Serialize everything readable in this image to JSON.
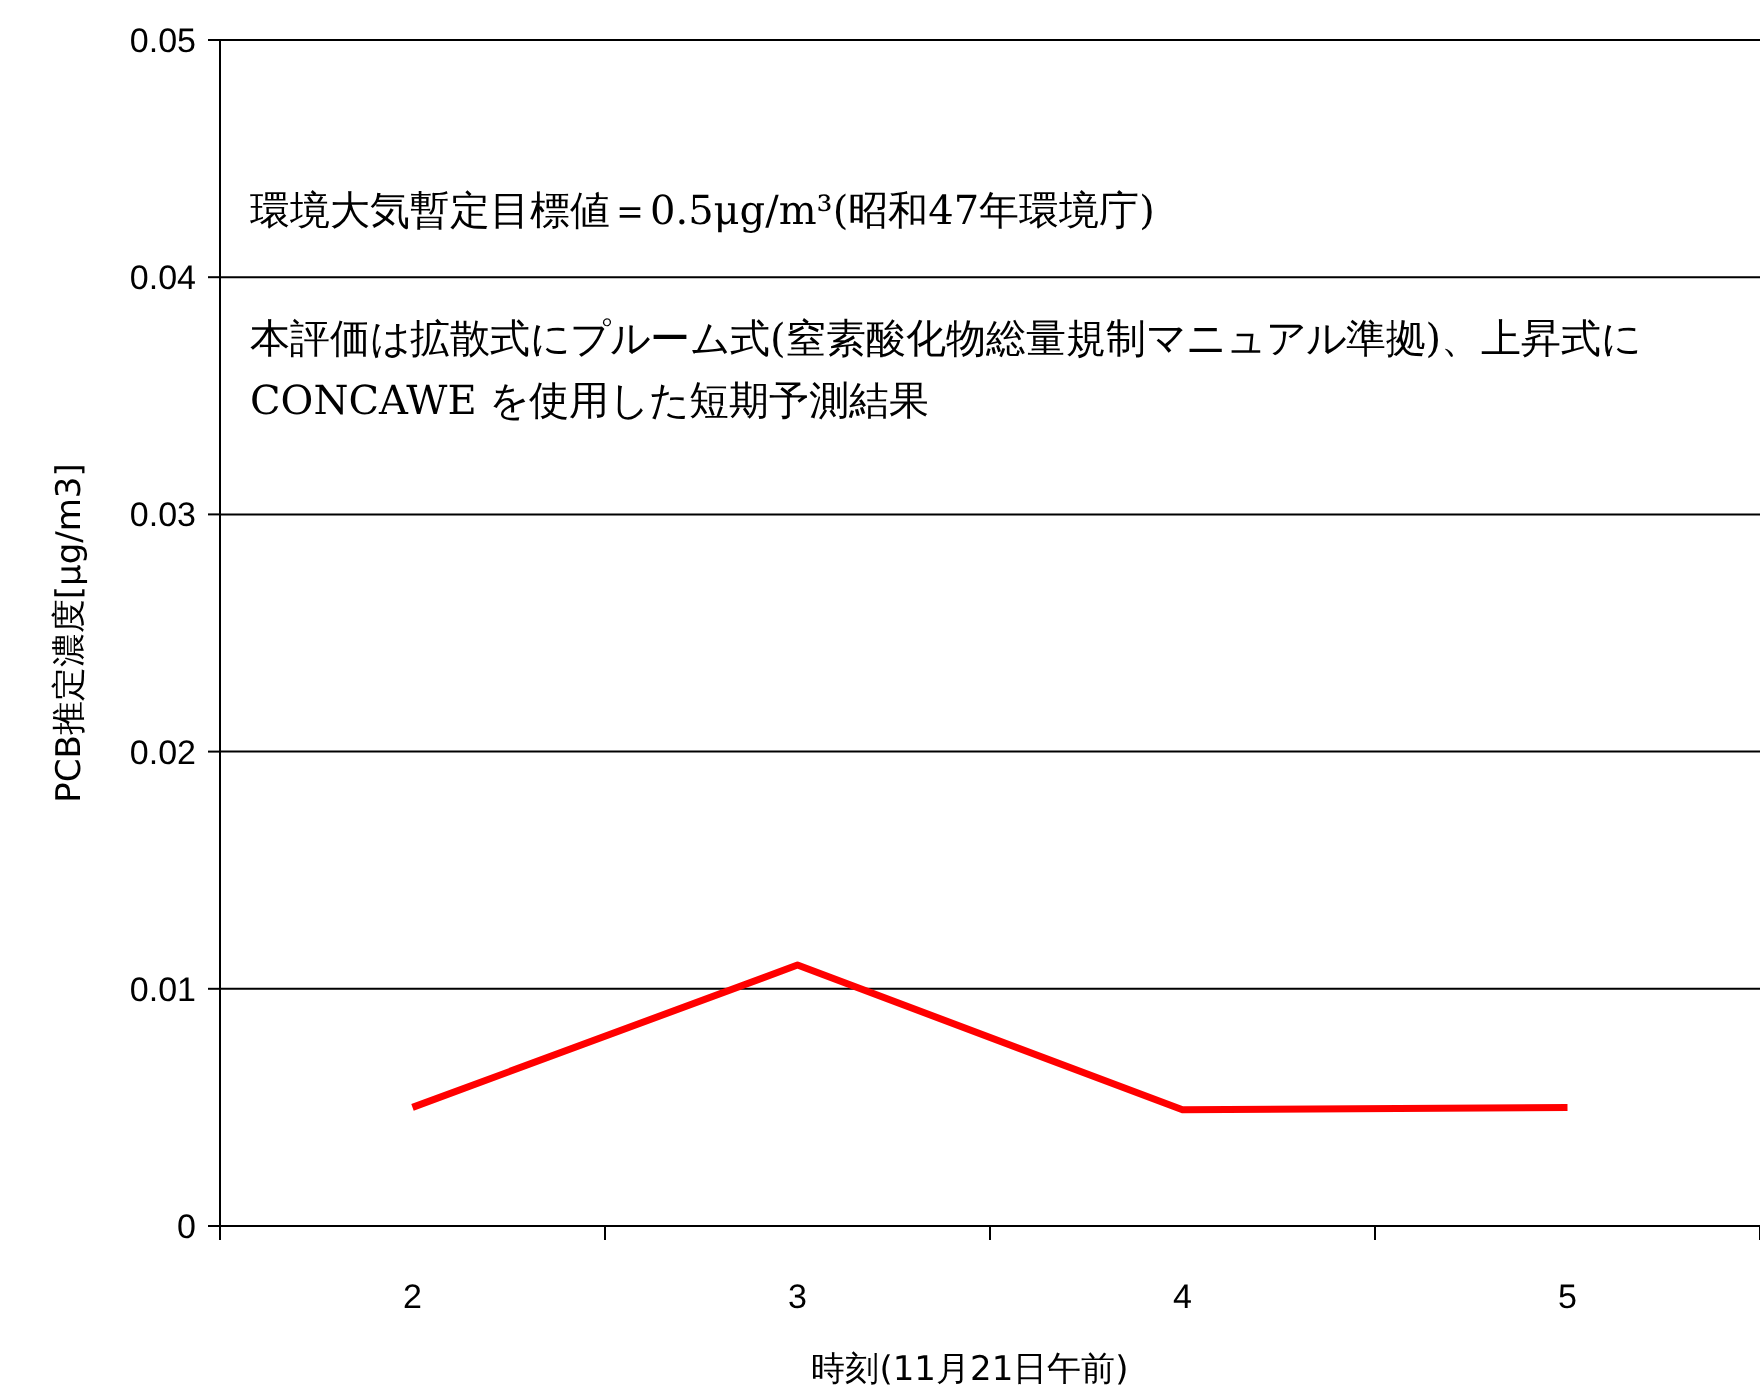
{
  "chart_data": {
    "type": "line",
    "xlabel": "時刻(11月21日午前)",
    "ylabel": "PCB推定濃度[μg/m3]",
    "categories": [
      "2",
      "3",
      "4",
      "5"
    ],
    "series": [
      {
        "color": "#ff0000",
        "values": [
          0.005,
          0.011,
          0.0049,
          0.005
        ]
      }
    ],
    "ylim": [
      0,
      0.05
    ],
    "yticks": [
      0,
      0.01,
      0.02,
      0.03,
      0.04,
      0.05
    ],
    "grid": "y",
    "annotations": [
      "環境大気暫定目標値＝0.5μg/m³(昭和47年環境庁)",
      "本評価は拡散式にプルーム式(窒素酸化物総量規制マニュアル準拠)、上昇式に CONCAWE を使用した短期予測結果"
    ]
  }
}
